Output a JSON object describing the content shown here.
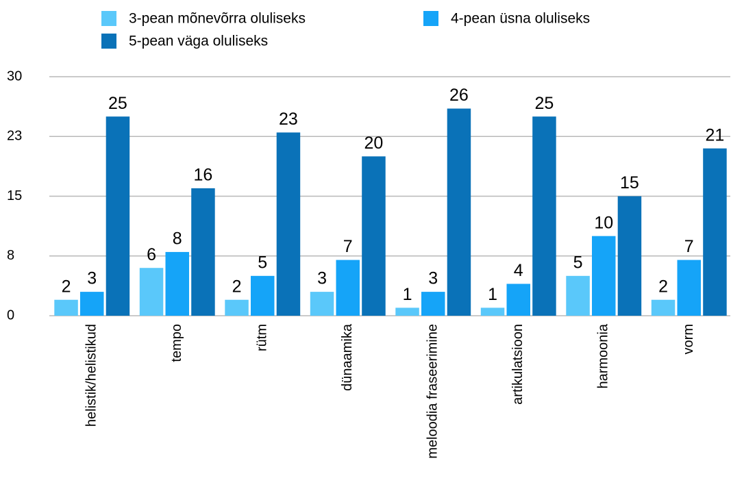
{
  "chart_data": {
    "type": "bar",
    "categories": [
      "helistik/helistikud",
      "tempo",
      "rütm",
      "dünaamika",
      "meloodia fraseerimine",
      "artikulatsioon",
      "harmoonia",
      "vorm"
    ],
    "series": [
      {
        "name": "3-pean mõnevõrra oluliseks",
        "color": "#5ac8fa",
        "values": [
          2,
          6,
          2,
          3,
          1,
          1,
          5,
          2
        ]
      },
      {
        "name": "4-pean üsna oluliseks",
        "color": "#15a4f8",
        "values": [
          3,
          8,
          5,
          7,
          3,
          4,
          10,
          7
        ]
      },
      {
        "name": "5-pean väga oluliseks",
        "color": "#0a72b8",
        "values": [
          25,
          16,
          23,
          20,
          26,
          25,
          15,
          21
        ]
      }
    ],
    "ylim": [
      0,
      30
    ],
    "yticks": [
      0,
      {
        "value": 7.5,
        "label": "8"
      },
      15,
      {
        "value": 22.5,
        "label": "23"
      },
      30
    ],
    "grid": true
  }
}
